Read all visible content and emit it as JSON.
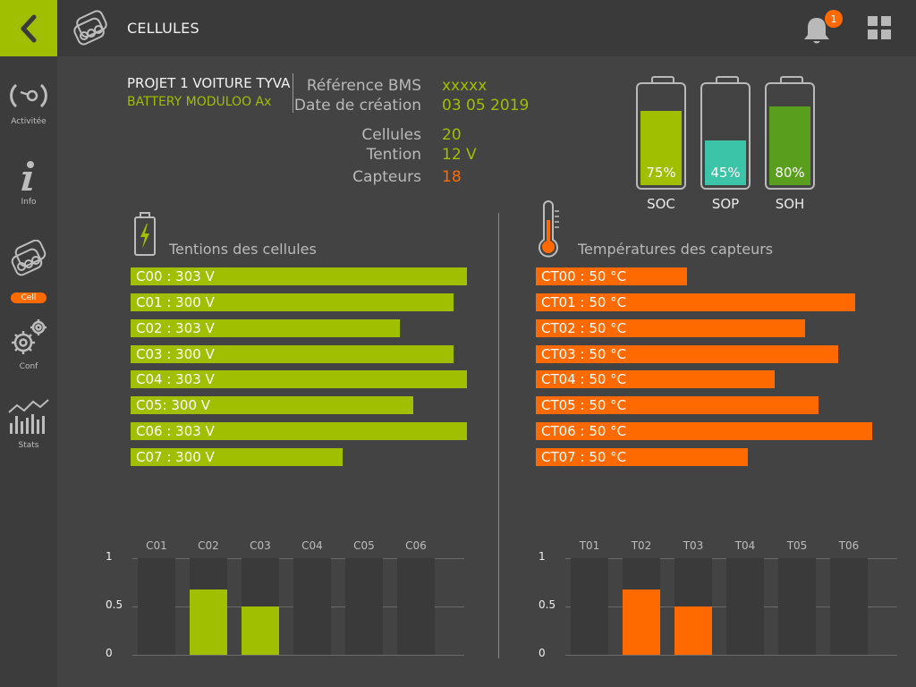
{
  "header": {
    "title": "CELLULES",
    "notification_count": "1",
    "back_icon": "chevron-left-icon",
    "menu_icon": "grid-icon"
  },
  "sidebar": {
    "items": [
      {
        "label": "Activitée",
        "icon": "activity-icon"
      },
      {
        "label": "Info",
        "icon": "info-icon"
      },
      {
        "label": "Cell",
        "icon": "cells-icon",
        "active": true
      },
      {
        "label": "Conf",
        "icon": "gears-icon"
      },
      {
        "label": "Stats",
        "icon": "stats-icon"
      }
    ]
  },
  "project": {
    "name": "PROJET 1 VOITURE TYVA",
    "sub": "BATTERY MODULOO Ax"
  },
  "details": {
    "ref_label": "Référence BMS",
    "ref_value": "xxxxx",
    "date_label": "Date de création",
    "date_value": "03 05 2019",
    "cells_label": "Cellules",
    "cells_value": "20",
    "tension_label": "Tention",
    "tension_value": "12 V",
    "sensors_label": "Capteurs",
    "sensors_value": "18"
  },
  "batteries": [
    {
      "name": "SOC",
      "pct": "75%",
      "level": 0.75,
      "color": "#9fbf00"
    },
    {
      "name": "SOP",
      "pct": "45%",
      "level": 0.45,
      "color": "#3cc4a8"
    },
    {
      "name": "SOH",
      "pct": "80%",
      "level": 0.8,
      "color": "#5a9e1e"
    }
  ],
  "voltages": {
    "title": "Tentions des cellules",
    "bars": [
      {
        "label": "C00 : 303 V",
        "fraction": 1.0
      },
      {
        "label": "C01 : 300 V",
        "fraction": 0.96
      },
      {
        "label": "C02 : 303 V",
        "fraction": 0.8
      },
      {
        "label": "C03 : 300 V",
        "fraction": 0.96
      },
      {
        "label": "C04 : 303 V",
        "fraction": 1.0
      },
      {
        "label": "C05: 300 V",
        "fraction": 0.84
      },
      {
        "label": "C06 : 303 V",
        "fraction": 1.0
      },
      {
        "label": "C07 : 300 V",
        "fraction": 0.63
      }
    ]
  },
  "temperatures": {
    "title": "Températures des capteurs",
    "bars": [
      {
        "label": "CT00 : 50 °C",
        "fraction": 0.45
      },
      {
        "label": "CT01 : 50 °C",
        "fraction": 0.95
      },
      {
        "label": "CT02 : 50 °C",
        "fraction": 0.8
      },
      {
        "label": "CT03 : 50 °C",
        "fraction": 0.9
      },
      {
        "label": "CT04 : 50 °C",
        "fraction": 0.71
      },
      {
        "label": "CT05 : 50 °C",
        "fraction": 0.84
      },
      {
        "label": "CT06 : 50 °C",
        "fraction": 1.0
      },
      {
        "label": "CT07 : 50 °C",
        "fraction": 0.63
      }
    ]
  },
  "chart_data": [
    {
      "type": "bar",
      "categories": [
        "C01",
        "C02",
        "C03",
        "C04",
        "C05",
        "C06"
      ],
      "values": [
        0,
        0.68,
        0.5,
        0,
        0,
        0
      ],
      "ylim": [
        0,
        1
      ],
      "yticks": [
        "1",
        "0.5",
        "0"
      ],
      "color": "#9fbf00"
    },
    {
      "type": "bar",
      "categories": [
        "T01",
        "T02",
        "T03",
        "T04",
        "T05",
        "T06"
      ],
      "values": [
        0,
        0.68,
        0.5,
        0,
        0,
        0
      ],
      "ylim": [
        0,
        1
      ],
      "yticks": [
        "1",
        "0.5",
        "0"
      ],
      "color": "#ff6a00"
    }
  ]
}
